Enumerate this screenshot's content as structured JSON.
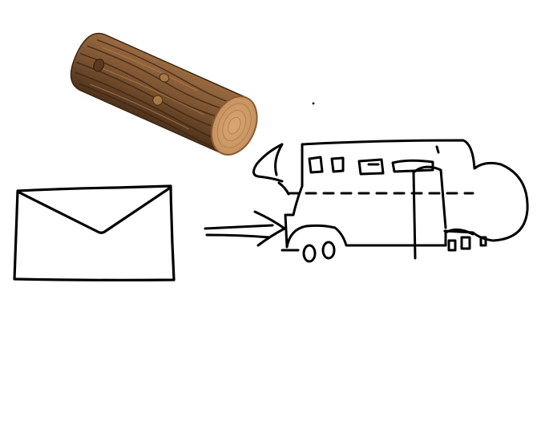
{
  "scene": {
    "background_color": "#ffffff",
    "ink_color": "#000000",
    "log": {
      "icon": "wooden-log",
      "bark_color": "#7a5230",
      "bark_dark_color": "#4e321b",
      "cut_face_color": "#d9a774",
      "ring_color": "#b07a49"
    },
    "envelope": {
      "icon": "envelope-sketch"
    },
    "arrow": {
      "icon": "double-line-arrow-right",
      "direction": "right"
    },
    "truck": {
      "icon": "camper-truck-sketch"
    }
  }
}
